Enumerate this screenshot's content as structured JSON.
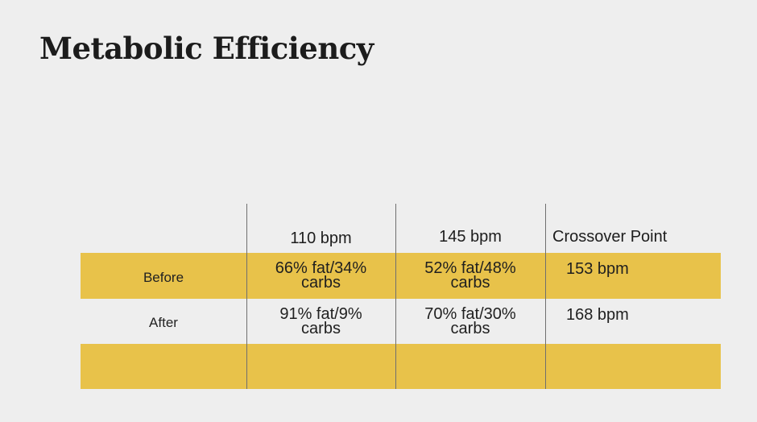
{
  "title": "Metabolic Efficiency",
  "table": {
    "headers": [
      "",
      "110 bpm",
      "145 bpm",
      "Crossover Point"
    ],
    "rows": [
      {
        "label": "Before",
        "cells": [
          [
            "66% fat/34%",
            "carbs"
          ],
          [
            "52% fat/48%",
            "carbs"
          ]
        ],
        "crossover": "153 bpm"
      },
      {
        "label": "After",
        "cells": [
          [
            "91% fat/9%",
            "carbs"
          ],
          [
            "70% fat/30%",
            "carbs"
          ]
        ],
        "crossover": "168 bpm"
      },
      {
        "label": "",
        "cells": [
          [
            "",
            ""
          ],
          [
            "",
            ""
          ]
        ],
        "crossover": ""
      }
    ]
  },
  "colors": {
    "background": "#eeeeee",
    "row_highlight": "#e8c24a",
    "divider": "#6f6f6f",
    "text": "#1c1c1c"
  }
}
